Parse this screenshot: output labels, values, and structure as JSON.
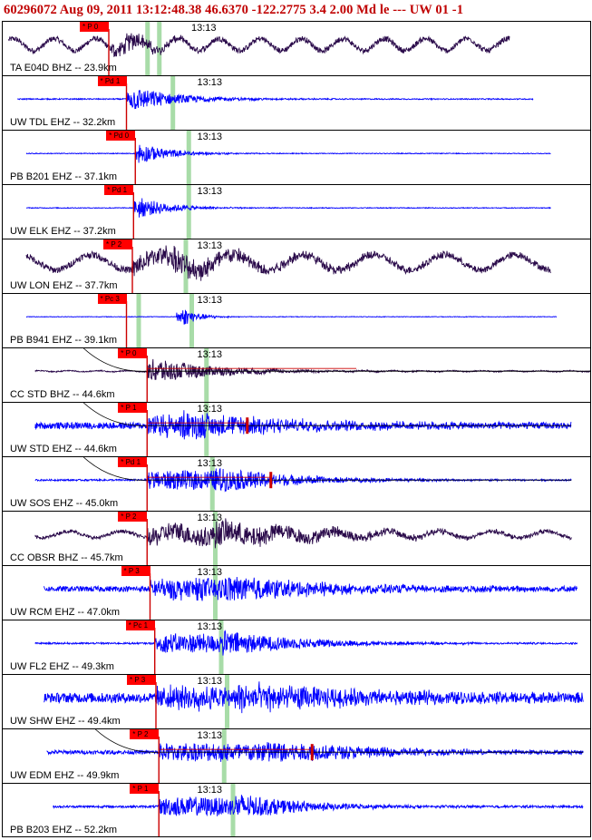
{
  "header": {
    "title": "60296072  Aug 09, 2011 13:12:48.38   46.6370 -122.2775  3.4 2.00 Md le ---  UW 01   -1"
  },
  "colors": {
    "header": "#c00000",
    "pick_flag": "#ff0000",
    "trace_blue": "#0000ff",
    "trace_dark": "#2a0a4a",
    "marker_green": "#a8dca8",
    "pick_line": "#cc0000"
  },
  "chart_data": {
    "type": "seismogram",
    "time_label": "13:13",
    "panels": [
      {
        "label": "TA E04D BHZ -- 23.9km",
        "pick": "* P 0",
        "trace": "dark",
        "noise": 0.1,
        "swell": 0.22,
        "swellPeriod": 0.07,
        "onset": 0.185,
        "peak": 0.35,
        "peakAt": 0.21,
        "coda": 0.12,
        "tStart": 0.01,
        "tEnd": 0.86,
        "pickX": 0.18,
        "greenX": [
          0.245,
          0.265
        ],
        "tickX": 0.32
      },
      {
        "label": "UW TDL EHZ -- 32.2km",
        "pick": "* Pd 1",
        "trace": "blue",
        "noise": 0.02,
        "swell": 0,
        "onset": 0.21,
        "peak": 0.45,
        "peakAt": 0.22,
        "coda": 0.18,
        "tStart": 0.025,
        "tEnd": 0.9,
        "pickX": 0.21,
        "greenX": [
          0.288
        ],
        "tickX": 0.33
      },
      {
        "label": "PB B201 EHZ -- 37.1km",
        "pick": "* Pd 0",
        "trace": "blue",
        "noise": 0.015,
        "swell": 0,
        "onset": 0.225,
        "peak": 0.4,
        "peakAt": 0.23,
        "coda": 0.12,
        "tStart": 0.04,
        "tEnd": 0.93,
        "pickX": 0.225,
        "greenX": [
          0.315
        ],
        "tickX": 0.33
      },
      {
        "label": "UW ELK EHZ -- 37.2km",
        "pick": "* Pd 1",
        "trace": "blue",
        "noise": 0.015,
        "swell": 0,
        "onset": 0.222,
        "peak": 0.4,
        "peakAt": 0.23,
        "coda": 0.12,
        "tStart": 0.04,
        "tEnd": 0.93,
        "pickX": 0.222,
        "greenX": [
          0.315
        ],
        "tickX": 0.33
      },
      {
        "label": "UW LON EHZ -- 37.7km",
        "pick": "* P 2",
        "trace": "dark",
        "noise": 0.12,
        "swell": 0.28,
        "swellPeriod": 0.12,
        "onset": 0.22,
        "peak": 0.45,
        "peakAt": 0.29,
        "coda": 0.35,
        "tStart": 0.04,
        "tEnd": 0.93,
        "pickX": 0.22,
        "greenX": [
          0.31
        ],
        "tickX": 0.33
      },
      {
        "label": "PB B941 EHZ -- 39.1km",
        "pick": "* Pc 3",
        "trace": "blue",
        "noise": 0.01,
        "swell": 0,
        "onset": 0.295,
        "peak": 0.35,
        "peakAt": 0.305,
        "coda": 0.06,
        "tStart": 0.04,
        "tEnd": 0.94,
        "pickX": 0.21,
        "greenX": [
          0.23,
          0.32
        ],
        "tickX": 0.33
      },
      {
        "label": "CC STD BHZ -- 44.6km",
        "pick": "* P 0",
        "trace": "dark",
        "noise": 0.02,
        "swell": 0.02,
        "swellPeriod": 0.05,
        "onset": 0.245,
        "peak": 0.45,
        "peakAt": 0.255,
        "coda": 0.25,
        "tStart": 0.055,
        "tEnd": 1.0,
        "pickX": 0.245,
        "greenX": [
          0.345
        ],
        "tickX": 0.33,
        "curve": true
      },
      {
        "label": "UW STD EHZ -- 44.6km",
        "pick": "* P 1",
        "trace": "blue",
        "noise": 0.12,
        "swell": 0,
        "onset": 0.245,
        "peak": 0.5,
        "peakAt": 0.3,
        "coda": 0.4,
        "tStart": 0.055,
        "tEnd": 0.965,
        "pickX": 0.245,
        "greenX": [
          0.345
        ],
        "tickX": 0.33,
        "curve": true,
        "redTick": 0.415
      },
      {
        "label": "UW SOS EHZ -- 45.0km",
        "pick": "* Pd 1",
        "trace": "blue",
        "noise": 0.03,
        "swell": 0,
        "onset": 0.245,
        "peak": 0.48,
        "peakAt": 0.36,
        "coda": 0.3,
        "tStart": 0.055,
        "tEnd": 0.965,
        "pickX": 0.245,
        "greenX": [
          0.355
        ],
        "tickX": 0.33,
        "curve": true,
        "redTick": 0.455
      },
      {
        "label": "CC OBSR BHZ -- 45.7km",
        "pick": "* P 2",
        "trace": "dark",
        "noise": 0.06,
        "swell": 0.12,
        "swellPeriod": 0.09,
        "onset": 0.245,
        "peak": 0.48,
        "peakAt": 0.36,
        "coda": 0.45,
        "tStart": 0.055,
        "tEnd": 0.965,
        "pickX": 0.245,
        "greenX": [
          0.36
        ],
        "tickX": 0.33
      },
      {
        "label": "UW RCM EHZ -- 47.0km",
        "pick": "* P 3",
        "trace": "blue",
        "noise": 0.1,
        "swell": 0,
        "onset": 0.25,
        "peak": 0.5,
        "peakAt": 0.37,
        "coda": 0.4,
        "tStart": 0.07,
        "tEnd": 0.975,
        "pickX": 0.25,
        "greenX": [
          0.36
        ],
        "tickX": 0.33
      },
      {
        "label": "UW FL2 EHZ -- 49.3km",
        "pick": "* Pc 1",
        "trace": "blue",
        "noise": 0.03,
        "swell": 0,
        "onset": 0.258,
        "peak": 0.48,
        "peakAt": 0.37,
        "coda": 0.3,
        "tStart": 0.055,
        "tEnd": 0.975,
        "pickX": 0.258,
        "greenX": [
          0.37
        ],
        "tickX": 0.33
      },
      {
        "label": "UW SHW EHZ -- 49.4km",
        "pick": "* P 3",
        "trace": "blue",
        "noise": 0.18,
        "swell": 0,
        "onset": 0.26,
        "peak": 0.5,
        "peakAt": 0.4,
        "coda": 0.5,
        "tStart": 0.07,
        "tEnd": 0.985,
        "pickX": 0.26,
        "greenX": [
          0.38
        ],
        "tickX": 0.33
      },
      {
        "label": "UW EDM EHZ -- 49.9km",
        "pick": "* P 2",
        "trace": "blue",
        "noise": 0.07,
        "swell": 0,
        "onset": 0.265,
        "peak": 0.45,
        "peakAt": 0.44,
        "coda": 0.4,
        "tStart": 0.075,
        "tEnd": 0.985,
        "pickX": 0.265,
        "greenX": [
          0.375
        ],
        "tickX": 0.33,
        "curve": true,
        "redTick": 0.525
      },
      {
        "label": "PB B203 EHZ -- 52.2km",
        "pick": "* P 1",
        "trace": "blue",
        "noise": 0.04,
        "swell": 0,
        "onset": 0.265,
        "peak": 0.48,
        "peakAt": 0.395,
        "coda": 0.25,
        "tStart": 0.085,
        "tEnd": 0.985,
        "pickX": 0.265,
        "greenX": [
          0.39
        ],
        "tickX": 0.33
      }
    ]
  }
}
